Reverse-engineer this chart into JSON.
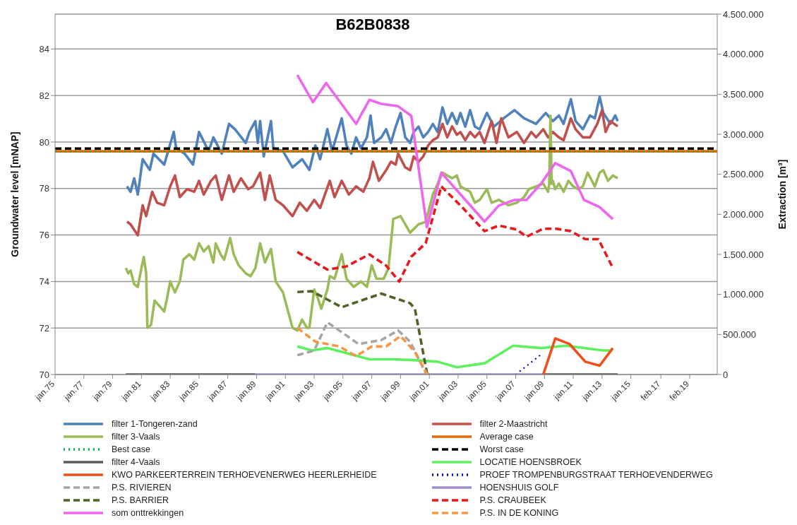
{
  "chart_data": {
    "type": "line",
    "title": "B62B0838",
    "ylabel": "Groundwater level [mNAP]",
    "y2label": "Extraction [m³]",
    "xlim": [
      "1975-01",
      "2021-01"
    ],
    "xticks": [
      {
        "value": "1975-01",
        "label": "jan.75"
      },
      {
        "value": "1977-01",
        "label": "jan.77"
      },
      {
        "value": "1979-01",
        "label": "jan.79"
      },
      {
        "value": "1981-01",
        "label": "jan.81"
      },
      {
        "value": "1983-01",
        "label": "jan.83"
      },
      {
        "value": "1985-01",
        "label": "jan.85"
      },
      {
        "value": "1987-01",
        "label": "jan.87"
      },
      {
        "value": "1989-01",
        "label": "jan.89"
      },
      {
        "value": "1991-01",
        "label": "jan.91"
      },
      {
        "value": "1993-01",
        "label": "jan.93"
      },
      {
        "value": "1995-01",
        "label": "jan.95"
      },
      {
        "value": "1997-01",
        "label": "jan.97"
      },
      {
        "value": "1999-01",
        "label": "jan.99"
      },
      {
        "value": "2001-01",
        "label": "jan.01"
      },
      {
        "value": "2003-01",
        "label": "jan.03"
      },
      {
        "value": "2005-01",
        "label": "jan.05"
      },
      {
        "value": "2007-01",
        "label": "jan.07"
      },
      {
        "value": "2009-01",
        "label": "jan.09"
      },
      {
        "value": "2011-01",
        "label": "jan.11"
      },
      {
        "value": "2013-01",
        "label": "jan.13"
      },
      {
        "value": "2015-01",
        "label": "jan.15"
      },
      {
        "value": "2017-02",
        "label": "feb.17"
      },
      {
        "value": "2019-02",
        "label": "feb.19"
      }
    ],
    "ylim": [
      70,
      85.5
    ],
    "yticks": [
      70,
      72,
      74,
      76,
      78,
      80,
      82,
      84
    ],
    "y2lim": [
      0,
      4500000
    ],
    "y2ticks": [
      0,
      {
        "value": 500000,
        "label": "500.000"
      },
      {
        "value": 1000000,
        "label": "1.000.000"
      },
      {
        "value": 1500000,
        "label": "1.500.000"
      },
      {
        "value": 2000000,
        "label": "2.000.000"
      },
      {
        "value": 2500000,
        "label": "2.500.000"
      },
      {
        "value": 3000000,
        "label": "3.000.000"
      },
      {
        "value": 3500000,
        "label": "3.500.000"
      },
      {
        "value": 4000000,
        "label": "4.000.000"
      },
      {
        "value": 4500000,
        "label": "4.500.000"
      }
    ],
    "grid": "y",
    "legend": "bottom",
    "line_style": "solid",
    "series": [
      {
        "name": "filter 1-Tongeren-zand",
        "color": "#4f81bd",
        "x": [
          "1980-01",
          "1980-04",
          "1980-07",
          "1980-10",
          "1981-02",
          "1981-08",
          "1981-11",
          "1982-08",
          "1983-04",
          "1983-06",
          "1984-01",
          "1984-08",
          "1985-01",
          "1985-09",
          "1986-01",
          "1986-08",
          "1987-02",
          "1987-07",
          "1988-04",
          "1988-07",
          "1988-12",
          "1989-02",
          "1989-04",
          "1989-07",
          "1990-01",
          "1990-03",
          "1990-11",
          "1991-07",
          "1992-03",
          "1992-09",
          "1993-02",
          "1993-06",
          "1993-12",
          "1994-04",
          "1994-12",
          "1995-04",
          "1995-08",
          "1995-12",
          "1996-04",
          "1996-09",
          "1996-12",
          "1997-03",
          "1997-09",
          "1998-01",
          "1998-05",
          "1998-09",
          "1999-01",
          "1999-05",
          "1999-09",
          "1999-12",
          "2000-04",
          "2000-08",
          "2000-12",
          "2001-04",
          "2001-08",
          "2001-12",
          "2002-04",
          "2002-08",
          "2002-12",
          "2003-03",
          "2003-07",
          "2003-11",
          "2004-03",
          "2004-07",
          "2005-01",
          "2005-07",
          "2006-03",
          "2006-12",
          "2007-08",
          "2008-06",
          "2009-02",
          "2009-08",
          "2010-01",
          "2010-05",
          "2010-11",
          "2011-03",
          "2011-09",
          "2012-03",
          "2012-07",
          "2012-11",
          "2013-02",
          "2013-08",
          "2013-12",
          "2014-02"
        ],
        "values": [
          78.09,
          77.86,
          78.44,
          77.74,
          79.26,
          78.8,
          79.5,
          79.03,
          80.43,
          79.73,
          79.5,
          79.03,
          80.43,
          79.61,
          80.2,
          79.5,
          80.78,
          80.55,
          79.96,
          80.43,
          80.9,
          79.96,
          80.9,
          79.38,
          80.9,
          79.73,
          79.61,
          78.91,
          79.26,
          78.8,
          79.85,
          79.26,
          80.55,
          79.61,
          81.02,
          79.85,
          79.5,
          80.2,
          79.73,
          80.2,
          81.14,
          79.96,
          80.2,
          80.55,
          79.96,
          80.66,
          81.25,
          80.2,
          79.96,
          80.43,
          80.66,
          80.2,
          80.43,
          80.78,
          80.43,
          81.49,
          80.78,
          81.25,
          80.78,
          81.25,
          80.66,
          81.37,
          80.66,
          80.55,
          81.25,
          80.66,
          81.02,
          81.37,
          81.02,
          80.78,
          81.25,
          80.9,
          81.14,
          80.78,
          81.84,
          80.9,
          80.55,
          81.14,
          81.02,
          81.95,
          81.25,
          80.78,
          81.14,
          80.9
        ]
      },
      {
        "name": "filter 2-Maastricht",
        "color": "#c0504d",
        "x": [
          "1980-01",
          "1980-04",
          "1980-07",
          "1980-10",
          "1981-02",
          "1981-05",
          "1981-10",
          "1982-02",
          "1982-08",
          "1983-01",
          "1983-05",
          "1983-09",
          "1984-03",
          "1984-09",
          "1985-01",
          "1985-05",
          "1985-11",
          "1986-03",
          "1986-08",
          "1987-02",
          "1987-06",
          "1987-12",
          "1988-06",
          "1988-10",
          "1989-04",
          "1989-08",
          "1989-12",
          "1990-05",
          "1990-11",
          "1991-07",
          "1992-01",
          "1992-07",
          "1993-01",
          "1993-06",
          "1994-02",
          "1994-06",
          "1994-12",
          "1995-06",
          "1995-12",
          "1996-06",
          "1996-11",
          "1997-02",
          "1997-07",
          "1998-01",
          "1998-05",
          "1998-09",
          "1998-11",
          "1999-05",
          "1999-09",
          "1999-12",
          "2000-04",
          "2000-08",
          "2000-12",
          "2001-04",
          "2001-08",
          "2001-12",
          "2002-04",
          "2002-08",
          "2002-12",
          "2003-03",
          "2003-07",
          "2003-11",
          "2004-03",
          "2004-07",
          "2004-11",
          "2005-05",
          "2005-09",
          "2006-01",
          "2006-07",
          "2007-02",
          "2007-08",
          "2008-02",
          "2008-06",
          "2008-12",
          "2009-04",
          "2009-08",
          "2010-01",
          "2010-05",
          "2010-11",
          "2011-03",
          "2011-09",
          "2012-03",
          "2012-09",
          "2013-01",
          "2013-04",
          "2013-08",
          "2014-02"
        ],
        "values": [
          76.57,
          76.46,
          76.22,
          75.99,
          77.28,
          76.81,
          77.86,
          77.39,
          77.28,
          78.09,
          78.56,
          77.63,
          77.97,
          77.86,
          78.33,
          77.74,
          78.33,
          78.56,
          77.51,
          78.56,
          77.86,
          78.44,
          77.97,
          78.09,
          78.68,
          77.51,
          78.56,
          77.51,
          77.28,
          76.81,
          77.39,
          77.04,
          77.51,
          77.16,
          78.33,
          77.63,
          78.33,
          77.74,
          78.09,
          77.86,
          78.44,
          79.15,
          78.33,
          78.79,
          79.15,
          79.03,
          79.5,
          78.91,
          78.79,
          79.38,
          79.15,
          79.38,
          79.85,
          80.08,
          80.2,
          80.78,
          80.2,
          80.67,
          80.31,
          80.43,
          80.08,
          80.43,
          80.2,
          80.43,
          79.96,
          80.9,
          79.96,
          81.02,
          80.2,
          80.43,
          79.96,
          80.43,
          80.2,
          80.55,
          80.2,
          80.43,
          80.2,
          80.08,
          81.02,
          80.55,
          80.2,
          80.2,
          80.78,
          81.37,
          80.43,
          80.9,
          80.67
        ]
      },
      {
        "name": "filter 3-Vaals",
        "color": "#9bbb59",
        "x": [
          "1979-12",
          "1980-02",
          "1980-04",
          "1980-07",
          "1980-10",
          "1981-01",
          "1981-03",
          "1981-05",
          "1981-06",
          "1981-09",
          "1981-12",
          "1982-04",
          "1982-08",
          "1982-10",
          "1983-01",
          "1983-05",
          "1983-09",
          "1983-12",
          "1984-05",
          "1984-09",
          "1985-01",
          "1985-05",
          "1985-09",
          "1986-01",
          "1986-03",
          "1986-07",
          "1986-10",
          "1987-03",
          "1987-06",
          "1987-10",
          "1988-04",
          "1988-08",
          "1988-12",
          "1989-04",
          "1989-08",
          "1990-01",
          "1990-05",
          "1990-11",
          "1991-07",
          "1991-11",
          "1992-03",
          "1992-07",
          "1992-09",
          "1993-01",
          "1993-04",
          "1993-07",
          "1993-12",
          "1994-02",
          "1994-06",
          "1994-12",
          "1995-04",
          "1995-10",
          "1996-04",
          "1996-09",
          "1997-01",
          "1997-05",
          "1997-11",
          "1998-03",
          "1998-07",
          "1999-01",
          "1999-09",
          "2000-04",
          "2000-10",
          "2001-04",
          "2001-12",
          "2002-08",
          "2002-12",
          "2003-03",
          "2003-11",
          "2004-03",
          "2004-07",
          "2005-01",
          "2005-05",
          "2005-11",
          "2006-07",
          "2007-02",
          "2007-08",
          "2007-12",
          "2008-06",
          "2008-12",
          "2009-04",
          "2009-05",
          "2009-06",
          "2009-07",
          "2009-08",
          "2009-10",
          "2010-01",
          "2010-05",
          "2010-09",
          "2011-01",
          "2011-05",
          "2011-09",
          "2012-01",
          "2012-07",
          "2012-11",
          "2013-02",
          "2013-06",
          "2013-10",
          "2014-02"
        ],
        "values": [
          74.58,
          74.35,
          74.47,
          73.88,
          73.77,
          74.58,
          75.05,
          74.35,
          72.01,
          72.13,
          73.18,
          72.95,
          72.71,
          73.18,
          74.0,
          73.53,
          74.0,
          74.94,
          75.17,
          74.94,
          75.64,
          75.29,
          75.52,
          74.82,
          75.64,
          75.17,
          74.94,
          75.87,
          75.17,
          74.7,
          74.35,
          74.23,
          74.58,
          75.64,
          74.82,
          75.4,
          74.0,
          73.53,
          72.01,
          71.89,
          72.36,
          72.01,
          72.01,
          73.65,
          73.3,
          72.83,
          73.65,
          74.23,
          74.12,
          75.17,
          74.12,
          73.77,
          74.0,
          73.77,
          74.7,
          74.12,
          74.12,
          74.58,
          76.69,
          76.81,
          76.1,
          76.46,
          76.57,
          77.74,
          78.68,
          78.44,
          78.56,
          78.09,
          77.86,
          77.39,
          77.51,
          77.97,
          77.39,
          77.51,
          77.28,
          77.39,
          77.63,
          77.97,
          78.09,
          78.21,
          77.86,
          78.2,
          81.13,
          78.2,
          78.33,
          77.97,
          78.21,
          77.86,
          78.33,
          78.09,
          77.97,
          78.09,
          78.68,
          78.09,
          78.68,
          78.79,
          78.33,
          78.56,
          78.44
        ]
      },
      {
        "name": "Average case",
        "color": "#e36c09",
        "x": [
          "1975-01",
          "2021-01"
        ],
        "values": [
          79.6,
          79.6
        ]
      },
      {
        "name": "Best case",
        "color": "#00b050",
        "line_style": "dotted",
        "x": [
          "1975-01",
          "2021-01"
        ],
        "values": [
          79.6,
          79.6
        ]
      },
      {
        "name": "Worst case",
        "color": "#000000",
        "line_style": "dashed",
        "x": [
          "1975-01",
          "2021-01"
        ],
        "values": [
          79.72,
          79.72
        ]
      },
      {
        "name": "filter 4-Vaals",
        "color": "#595959",
        "axis": "y2",
        "x": [
          "1979-12",
          "1988-12",
          "1989-01",
          "2008-11",
          "2014-02"
        ],
        "values": [
          0,
          0,
          null,
          0,
          0
        ]
      },
      {
        "name": "LOCATIE HOENSBROEK",
        "color": "#5ff05f",
        "axis": "y2",
        "x": [
          "1991-11",
          "1992-11",
          "1993-12",
          "1996-11",
          "1998-07",
          "1999-12",
          "2001-08",
          "2002-12",
          "2004-11",
          "2006-11",
          "2008-10",
          "2010-07",
          "2013-02",
          "2013-10"
        ],
        "values": [
          350000,
          300000,
          330000,
          190000,
          190000,
          180000,
          160000,
          90000,
          140000,
          360000,
          330000,
          360000,
          300000,
          300000
        ]
      },
      {
        "name": "KWO PARKEERTERREIN TERHOEVENERWEG HEERLERHEIDE",
        "color": "#f04e1c",
        "axis": "y2",
        "x": [
          "2008-12",
          "2009-10",
          "2010-10",
          "2011-11",
          "2012-11",
          "2013-10"
        ],
        "values": [
          0,
          450000,
          380000,
          160000,
          110000,
          330000
        ]
      },
      {
        "name": "PROEF TROMPENBURGSTRAAT TERHOEVENDERWEG",
        "color": "#0000cc",
        "line_style": "dotted",
        "axis": "y2",
        "x": [
          "2007-01",
          "2008-11"
        ],
        "values": [
          0,
          260000
        ]
      },
      {
        "name": "P.S. RIVIEREN",
        "color": "#a6a6a6",
        "line_style": "dashed",
        "axis": "y2",
        "x": [
          "1991-11",
          "1993-01",
          "1993-12",
          "1994-10",
          "1996-02",
          "1997-09",
          "1998-11",
          "1999-09",
          "2000-10",
          "2001-01"
        ],
        "values": [
          240000,
          300000,
          650000,
          550000,
          380000,
          430000,
          550000,
          410000,
          20000,
          0
        ]
      },
      {
        "name": "HOENSHUIS GOLF",
        "color": "#9f8fc9",
        "axis": "y2",
        "x": [
          "1988-12",
          "2008-11"
        ],
        "values": [
          0,
          0
        ]
      },
      {
        "name": "P.S. BARRIER",
        "color": "#4f6228",
        "line_style": "dashed",
        "axis": "y2",
        "x": [
          "1991-11",
          "1992-11",
          "1994-12",
          "1997-09",
          "1999-09",
          "2000-01",
          "2000-11",
          "2001-01"
        ],
        "values": [
          1030000,
          1040000,
          840000,
          1010000,
          890000,
          820000,
          20000,
          0
        ]
      },
      {
        "name": "P.S. CRAUBEEK",
        "color": "#e41a1c",
        "line_style": "dashed",
        "axis": "y2",
        "x": [
          "1991-11",
          "1993-12",
          "1995-04",
          "1996-11",
          "1998-01",
          "1998-12",
          "1999-10",
          "2000-10",
          "2001-11",
          "2003-05",
          "2004-11",
          "2005-11",
          "2007-02",
          "2007-10",
          "2008-12",
          "2009-11",
          "2010-11",
          "2011-11",
          "2012-10",
          "2013-10"
        ],
        "values": [
          1530000,
          1310000,
          1350000,
          1500000,
          1360000,
          1160000,
          1470000,
          1640000,
          2350000,
          2080000,
          1790000,
          1860000,
          1810000,
          1720000,
          1820000,
          1820000,
          1790000,
          1690000,
          1690000,
          1330000
        ]
      },
      {
        "name": "som onttrekkingen",
        "color": "#ee66ee",
        "axis": "y2",
        "x": [
          "1991-11",
          "1992-12",
          "1993-11",
          "1995-12",
          "1996-11",
          "1997-09",
          "1998-11",
          "1999-10",
          "2000-11",
          "2001-11",
          "2004-11",
          "2005-11",
          "2006-12",
          "2007-10",
          "2008-10",
          "2009-10",
          "2010-11",
          "2011-10",
          "2012-11",
          "2013-10"
        ],
        "values": [
          3740000,
          3400000,
          3640000,
          3130000,
          3430000,
          3380000,
          3350000,
          3230000,
          1840000,
          2520000,
          1910000,
          2110000,
          2180000,
          2180000,
          2380000,
          2640000,
          2540000,
          2180000,
          2090000,
          1940000
        ]
      },
      {
        "name": "P.S. IN DE KONING",
        "color": "#f79646",
        "line_style": "dashed",
        "axis": "y2",
        "x": [
          "1991-11",
          "1993-02",
          "1994-10",
          "1995-12",
          "1997-01",
          "1998-01",
          "1999-01",
          "2000-01",
          "2000-11",
          "2001-01"
        ],
        "values": [
          580000,
          410000,
          350000,
          230000,
          350000,
          350000,
          480000,
          280000,
          10000,
          0
        ]
      }
    ]
  }
}
